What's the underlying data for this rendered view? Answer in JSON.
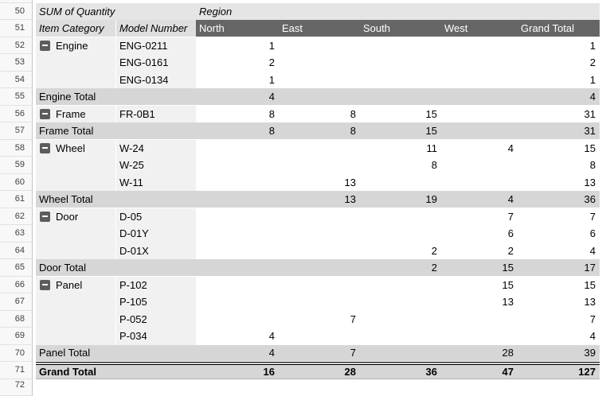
{
  "pivot": {
    "title": "SUM of Quantity",
    "region_label": "Region",
    "item_category_header": "Item Category",
    "model_number_header": "Model Number",
    "value_columns": [
      "North",
      "East",
      "South",
      "West",
      "Grand Total"
    ],
    "rows": [
      {
        "num": "50",
        "type": "title"
      },
      {
        "num": "51",
        "type": "colheader"
      },
      {
        "num": "52",
        "type": "item",
        "category": "Engine",
        "model": "ENG-0211",
        "values": [
          "1",
          "",
          "",
          "",
          "1"
        ]
      },
      {
        "num": "53",
        "type": "item",
        "category": "",
        "model": "ENG-0161",
        "values": [
          "2",
          "",
          "",
          "",
          "2"
        ]
      },
      {
        "num": "54",
        "type": "item",
        "category": "",
        "model": "ENG-0134",
        "values": [
          "1",
          "",
          "",
          "",
          "1"
        ]
      },
      {
        "num": "55",
        "type": "total",
        "label": "Engine Total",
        "values": [
          "4",
          "",
          "",
          "",
          "4"
        ]
      },
      {
        "num": "56",
        "type": "item",
        "category": "Frame",
        "model": "FR-0B1",
        "values": [
          "8",
          "8",
          "15",
          "",
          "31"
        ]
      },
      {
        "num": "57",
        "type": "total",
        "label": "Frame Total",
        "values": [
          "8",
          "8",
          "15",
          "",
          "31"
        ]
      },
      {
        "num": "58",
        "type": "item",
        "category": "Wheel",
        "model": "W-24",
        "values": [
          "",
          "",
          "11",
          "4",
          "15"
        ]
      },
      {
        "num": "59",
        "type": "item",
        "category": "",
        "model": "W-25",
        "values": [
          "",
          "",
          "8",
          "",
          "8"
        ]
      },
      {
        "num": "60",
        "type": "item",
        "category": "",
        "model": "W-11",
        "values": [
          "",
          "13",
          "",
          "",
          "13"
        ]
      },
      {
        "num": "61",
        "type": "total",
        "label": "Wheel Total",
        "values": [
          "",
          "13",
          "19",
          "4",
          "36"
        ]
      },
      {
        "num": "62",
        "type": "item",
        "category": "Door",
        "model": "D-05",
        "values": [
          "",
          "",
          "",
          "7",
          "7"
        ]
      },
      {
        "num": "63",
        "type": "item",
        "category": "",
        "model": "D-01Y",
        "values": [
          "",
          "",
          "",
          "6",
          "6"
        ]
      },
      {
        "num": "64",
        "type": "item",
        "category": "",
        "model": "D-01X",
        "values": [
          "",
          "",
          "2",
          "2",
          "4"
        ]
      },
      {
        "num": "65",
        "type": "total",
        "label": "Door Total",
        "values": [
          "",
          "",
          "2",
          "15",
          "17"
        ]
      },
      {
        "num": "66",
        "type": "item",
        "category": "Panel",
        "model": "P-102",
        "values": [
          "",
          "",
          "",
          "15",
          "15"
        ]
      },
      {
        "num": "67",
        "type": "item",
        "category": "",
        "model": "P-105",
        "values": [
          "",
          "",
          "",
          "13",
          "13"
        ]
      },
      {
        "num": "68",
        "type": "item",
        "category": "",
        "model": "P-052",
        "values": [
          "",
          "7",
          "",
          "",
          "7"
        ]
      },
      {
        "num": "69",
        "type": "item",
        "category": "",
        "model": "P-034",
        "values": [
          "4",
          "",
          "",
          "",
          "4"
        ]
      },
      {
        "num": "70",
        "type": "total",
        "label": "Panel Total",
        "values": [
          "4",
          "7",
          "",
          "28",
          "39"
        ]
      },
      {
        "num": "71",
        "type": "grand",
        "label": "Grand Total",
        "values": [
          "16",
          "28",
          "36",
          "47",
          "127"
        ]
      },
      {
        "num": "72",
        "type": "blank"
      }
    ]
  },
  "colors": {
    "column_header_bg": "#666666",
    "column_header_text": "#ffffff",
    "title_band_bg": "#e5e5e5",
    "row_header_bg": "#dedede",
    "item_label_bg": "#f1f1f1",
    "total_band_bg": "#d6d6d6",
    "collapse_button_bg": "#5c5c5c",
    "gutter_bg": "#f8f8f8"
  }
}
